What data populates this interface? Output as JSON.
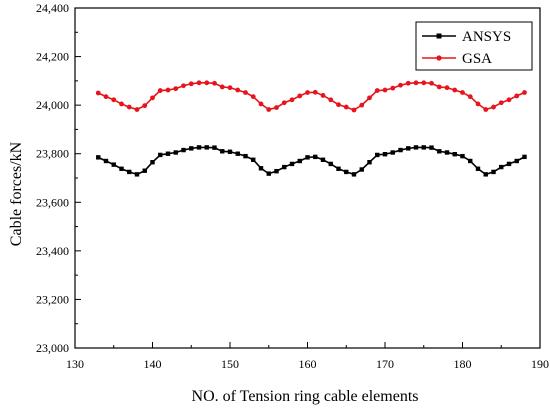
{
  "chart_data": {
    "type": "line",
    "title": "",
    "xlabel": "NO. of Tension ring cable elements",
    "ylabel": "Cable forces/kN",
    "xlim": [
      130,
      190
    ],
    "ylim": [
      23000,
      24400
    ],
    "xticks": [
      130,
      140,
      150,
      160,
      170,
      180,
      190
    ],
    "yticks": [
      23000,
      23200,
      23400,
      23600,
      23800,
      24000,
      24200,
      24400
    ],
    "ytick_labels": [
      "23,000",
      "23,200",
      "23,400",
      "23,600",
      "23,800",
      "24,000",
      "24,200",
      "24,400"
    ],
    "grid": false,
    "legend_position": "top-right",
    "x": [
      133,
      134,
      135,
      136,
      137,
      138,
      139,
      140,
      141,
      142,
      143,
      144,
      145,
      146,
      147,
      148,
      149,
      150,
      151,
      152,
      153,
      154,
      155,
      156,
      157,
      158,
      159,
      160,
      161,
      162,
      163,
      164,
      165,
      166,
      167,
      168,
      169,
      170,
      171,
      172,
      173,
      174,
      175,
      176,
      177,
      178,
      179,
      180,
      181,
      182,
      183,
      184,
      185,
      186,
      187,
      188
    ],
    "series": [
      {
        "name": "ANSYS",
        "color": "#000000",
        "marker": "square",
        "values": [
          23785,
          23770,
          23755,
          23738,
          23725,
          23715,
          23730,
          23765,
          23795,
          23800,
          23805,
          23815,
          23822,
          23826,
          23826,
          23825,
          23810,
          23808,
          23800,
          23790,
          23775,
          23740,
          23718,
          23728,
          23745,
          23758,
          23770,
          23785,
          23787,
          23775,
          23758,
          23738,
          23725,
          23715,
          23735,
          23765,
          23795,
          23798,
          23805,
          23815,
          23822,
          23826,
          23826,
          23825,
          23810,
          23805,
          23798,
          23790,
          23770,
          23738,
          23715,
          23725,
          23745,
          23758,
          23770,
          23787
        ]
      },
      {
        "name": "GSA",
        "color": "#e8141b",
        "marker": "circle",
        "values": [
          24050,
          24035,
          24022,
          24005,
          23992,
          23982,
          23998,
          24030,
          24060,
          24062,
          24068,
          24080,
          24088,
          24092,
          24092,
          24090,
          24075,
          24072,
          24062,
          24052,
          24035,
          24005,
          23982,
          23990,
          24010,
          24022,
          24038,
          24052,
          24053,
          24040,
          24022,
          24002,
          23992,
          23980,
          24000,
          24030,
          24060,
          24062,
          24070,
          24082,
          24090,
          24092,
          24092,
          24090,
          24075,
          24072,
          24062,
          24052,
          24035,
          24005,
          23982,
          23992,
          24010,
          24022,
          24038,
          24052
        ]
      }
    ]
  }
}
